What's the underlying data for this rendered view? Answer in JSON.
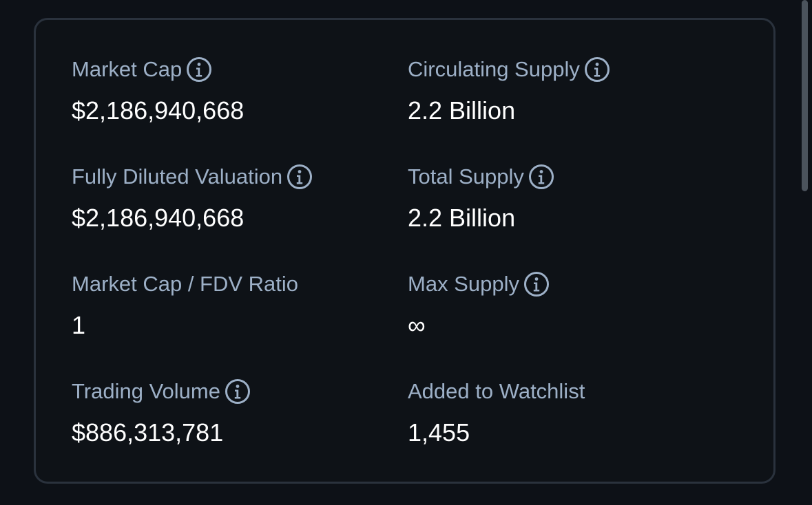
{
  "stats": {
    "market_cap": {
      "label": "Market Cap",
      "value": "$2,186,940,668"
    },
    "circulating_supply": {
      "label": "Circulating Supply",
      "value": "2.2 Billion"
    },
    "fdv": {
      "label": "Fully Diluted Valuation",
      "value": "$2,186,940,668"
    },
    "total_supply": {
      "label": "Total Supply",
      "value": "2.2 Billion"
    },
    "mc_fdv_ratio": {
      "label": "Market Cap / FDV Ratio",
      "value": "1"
    },
    "max_supply": {
      "label": "Max Supply",
      "value": "∞"
    },
    "trading_volume": {
      "label": "Trading Volume",
      "value": "$886,313,781"
    },
    "watchlist": {
      "label": "Added to Watchlist",
      "value": "1,455"
    }
  },
  "icons": {
    "info": "info-circle-icon"
  },
  "colors": {
    "background": "#0d1117",
    "card_border": "#2a323d",
    "label": "#9db0c7",
    "value": "#ffffff"
  }
}
